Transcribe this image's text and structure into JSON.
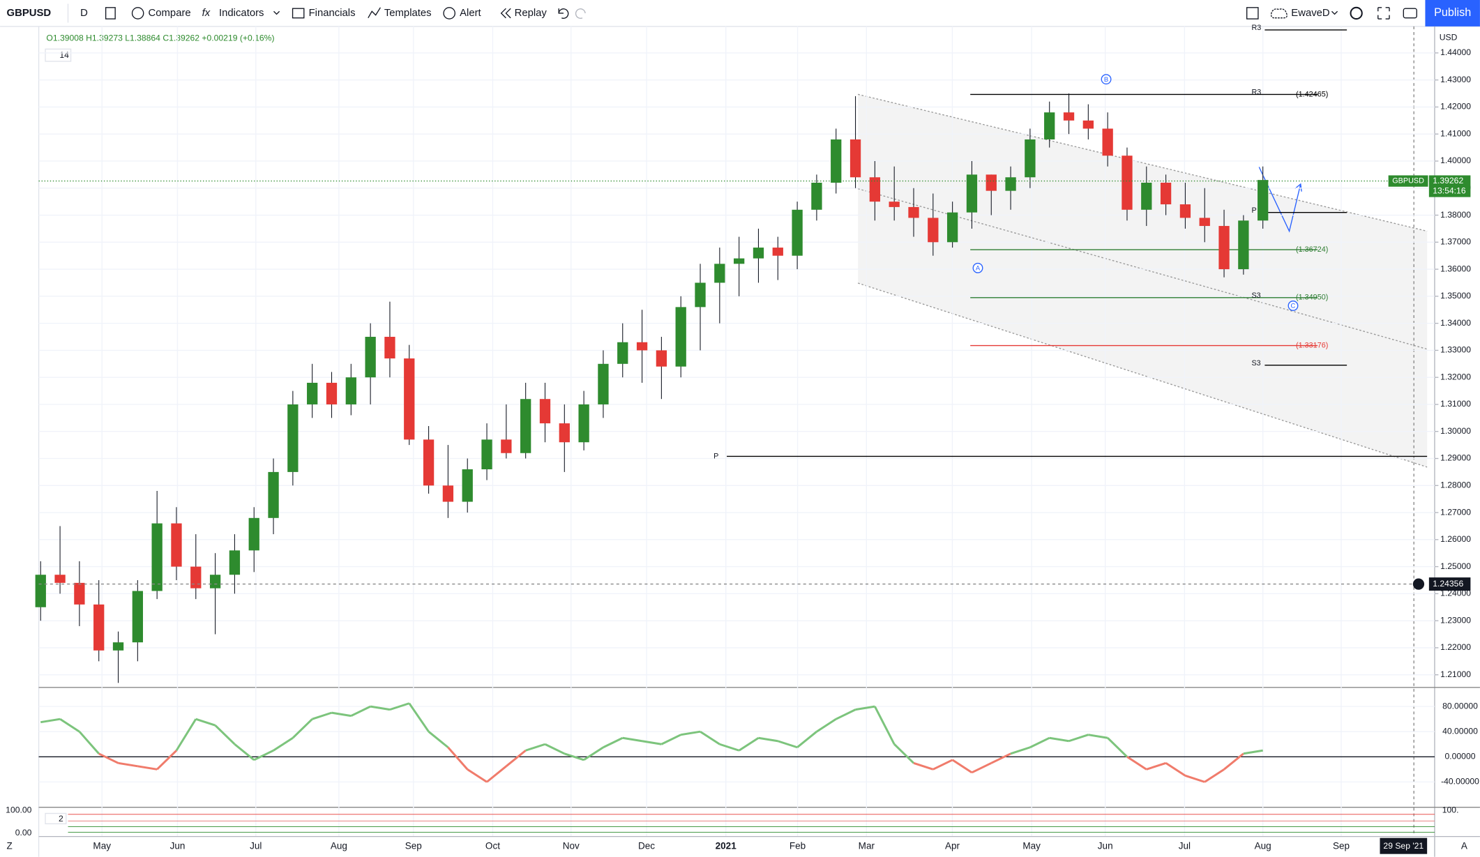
{
  "toolbar": {
    "symbol": "GBPUSD",
    "interval": "D",
    "compare": "Compare",
    "indicators": "Indicators",
    "financials": "Financials",
    "templates": "Templates",
    "alert": "Alert",
    "replay": "Replay",
    "layout": "EwaveD",
    "publish": "Publish"
  },
  "legend": {
    "ohlc": "O1.39008 H1.39273 L1.38864 C1.39262 +0.00219 (+0.16%)",
    "period": "14"
  },
  "chart_data": {
    "type": "candlestick",
    "currency": "USD",
    "ylim": [
      1.2055,
      1.4498
    ],
    "yticks": [
      {
        "value": 1.21,
        "label": "1.21000"
      },
      {
        "value": 1.22,
        "label": "1.22000"
      },
      {
        "value": 1.23,
        "label": "1.23000"
      },
      {
        "value": 1.24,
        "label": "1.24000"
      },
      {
        "value": 1.25,
        "label": "1.25000"
      },
      {
        "value": 1.26,
        "label": "1.26000"
      },
      {
        "value": 1.27,
        "label": "1.27000"
      },
      {
        "value": 1.28,
        "label": "1.28000"
      },
      {
        "value": 1.29,
        "label": "1.29000"
      },
      {
        "value": 1.3,
        "label": "1.30000"
      },
      {
        "value": 1.31,
        "label": "1.31000"
      },
      {
        "value": 1.32,
        "label": "1.32000"
      },
      {
        "value": 1.33,
        "label": "1.33000"
      },
      {
        "value": 1.34,
        "label": "1.34000"
      },
      {
        "value": 1.35,
        "label": "1.35000"
      },
      {
        "value": 1.36,
        "label": "1.36000"
      },
      {
        "value": 1.37,
        "label": "1.37000"
      },
      {
        "value": 1.38,
        "label": "1.38000"
      },
      {
        "value": 1.39,
        "label": "1.39000"
      },
      {
        "value": 1.4,
        "label": "1.40000"
      },
      {
        "value": 1.41,
        "label": "1.41000"
      },
      {
        "value": 1.42,
        "label": "1.42000"
      },
      {
        "value": 1.43,
        "label": "1.43000"
      },
      {
        "value": 1.44,
        "label": "1.44000"
      }
    ],
    "time_labels": [
      "May",
      "Jun",
      "Jul",
      "Aug",
      "Sep",
      "Oct",
      "Nov",
      "Dec",
      "2021",
      "Feb",
      "Mar",
      "Apr",
      "May",
      "Jun",
      "Jul",
      "Aug",
      "Sep"
    ],
    "cursor_date": "29 Sep '21",
    "up_color": "#2e8b2e",
    "down_color": "#e53935",
    "open": [
      1.235,
      1.247,
      1.244,
      1.236,
      1.219,
      1.222,
      1.241,
      1.266,
      1.25,
      1.242,
      1.247,
      1.256,
      1.268,
      1.285,
      1.31,
      1.318,
      1.31,
      1.32,
      1.335,
      1.327,
      1.297,
      1.28,
      1.274,
      1.286,
      1.297,
      1.292,
      1.312,
      1.303,
      1.296,
      1.31,
      1.325,
      1.333,
      1.33,
      1.324,
      1.346,
      1.355,
      1.362,
      1.364,
      1.368,
      1.365,
      1.382,
      1.392,
      1.408,
      1.394,
      1.385,
      1.383,
      1.379,
      1.37,
      1.381,
      1.395,
      1.389,
      1.394,
      1.408,
      1.418,
      1.415,
      1.412,
      1.402,
      1.382,
      1.392,
      1.384,
      1.379,
      1.376,
      1.36,
      1.378
    ],
    "high": [
      1.252,
      1.265,
      1.252,
      1.245,
      1.226,
      1.245,
      1.278,
      1.272,
      1.262,
      1.255,
      1.262,
      1.272,
      1.29,
      1.315,
      1.325,
      1.322,
      1.325,
      1.34,
      1.348,
      1.332,
      1.302,
      1.295,
      1.29,
      1.303,
      1.31,
      1.318,
      1.318,
      1.31,
      1.315,
      1.33,
      1.34,
      1.345,
      1.335,
      1.35,
      1.362,
      1.368,
      1.372,
      1.375,
      1.372,
      1.385,
      1.395,
      1.412,
      1.424,
      1.4,
      1.398,
      1.39,
      1.388,
      1.385,
      1.4,
      1.395,
      1.398,
      1.412,
      1.422,
      1.425,
      1.421,
      1.418,
      1.405,
      1.398,
      1.395,
      1.392,
      1.39,
      1.382,
      1.38,
      1.398
    ],
    "low": [
      1.23,
      1.24,
      1.228,
      1.215,
      1.207,
      1.215,
      1.238,
      1.245,
      1.238,
      1.225,
      1.24,
      1.248,
      1.262,
      1.28,
      1.305,
      1.305,
      1.306,
      1.31,
      1.32,
      1.295,
      1.277,
      1.268,
      1.27,
      1.282,
      1.29,
      1.29,
      1.296,
      1.285,
      1.293,
      1.305,
      1.32,
      1.318,
      1.312,
      1.32,
      1.33,
      1.34,
      1.35,
      1.355,
      1.356,
      1.36,
      1.378,
      1.388,
      1.39,
      1.378,
      1.378,
      1.372,
      1.365,
      1.368,
      1.375,
      1.38,
      1.382,
      1.39,
      1.405,
      1.41,
      1.408,
      1.398,
      1.378,
      1.376,
      1.38,
      1.375,
      1.37,
      1.357,
      1.358,
      1.375
    ],
    "close": [
      1.247,
      1.244,
      1.236,
      1.219,
      1.222,
      1.241,
      1.266,
      1.25,
      1.242,
      1.247,
      1.256,
      1.268,
      1.285,
      1.31,
      1.318,
      1.31,
      1.32,
      1.335,
      1.327,
      1.297,
      1.28,
      1.274,
      1.286,
      1.297,
      1.292,
      1.312,
      1.303,
      1.296,
      1.31,
      1.325,
      1.333,
      1.33,
      1.324,
      1.346,
      1.355,
      1.362,
      1.364,
      1.368,
      1.365,
      1.382,
      1.392,
      1.408,
      1.394,
      1.385,
      1.383,
      1.379,
      1.37,
      1.381,
      1.395,
      1.389,
      1.394,
      1.408,
      1.418,
      1.415,
      1.412,
      1.402,
      1.382,
      1.392,
      1.384,
      1.379,
      1.376,
      1.36,
      1.378,
      1.393
    ],
    "last_price": {
      "symbol": "GBPUSD",
      "value": 1.39262,
      "label": "1.39262",
      "countdown": "13:54:16"
    },
    "crosshair": {
      "value": 1.24356,
      "label": "1.24356"
    },
    "levels": [
      {
        "name": "R3",
        "value": 1.4485,
        "value_label": null,
        "color": "#000000"
      },
      {
        "name": "R3",
        "value": 1.42465,
        "value_label": "(1.42465)",
        "color": "#000000"
      },
      {
        "name": "P",
        "value": 1.381,
        "value_label": null,
        "color": "#000000"
      },
      {
        "name": null,
        "value": 1.36724,
        "value_label": "(1.36724)",
        "color": "#2e7d32"
      },
      {
        "name": "S3",
        "value": 1.3495,
        "value_label": "(1.34950)",
        "color": "#2e7d32"
      },
      {
        "name": null,
        "value": 1.33176,
        "value_label": "(1.33176)",
        "color": "#e53935"
      },
      {
        "name": "S3",
        "value": 1.3245,
        "value_label": null,
        "color": "#000000"
      },
      {
        "name": "P",
        "value": 1.2908,
        "value_label": null,
        "color": "#000000"
      }
    ],
    "waves": [
      "B",
      "A",
      "C"
    ],
    "oscillator": {
      "ylim": [
        -79.5,
        109.5
      ],
      "yticks": [
        {
          "value": 80,
          "label": "80.00000"
        },
        {
          "value": 40,
          "label": "40.00000"
        },
        {
          "value": 0,
          "label": "0.00000"
        },
        {
          "value": -40,
          "label": "-40.00000"
        }
      ],
      "up_color": "#7cc47c",
      "down_color": "#f07b6b",
      "values": [
        55,
        60,
        40,
        5,
        -10,
        -15,
        -20,
        10,
        60,
        50,
        20,
        -5,
        10,
        30,
        60,
        70,
        65,
        80,
        75,
        85,
        40,
        15,
        -20,
        -40,
        -15,
        10,
        20,
        5,
        -5,
        15,
        30,
        25,
        20,
        35,
        40,
        20,
        10,
        30,
        25,
        15,
        40,
        60,
        75,
        80,
        20,
        -10,
        -20,
        -5,
        -25,
        -10,
        5,
        15,
        30,
        25,
        35,
        30,
        0,
        -20,
        -10,
        -30,
        -40,
        -20,
        5,
        10
      ]
    },
    "stochastic": {
      "period": "2",
      "top_label": "100.00",
      "bottom_label": "0.00",
      "right_label": "100."
    }
  },
  "footer": {
    "left": "Z",
    "right": "A"
  }
}
